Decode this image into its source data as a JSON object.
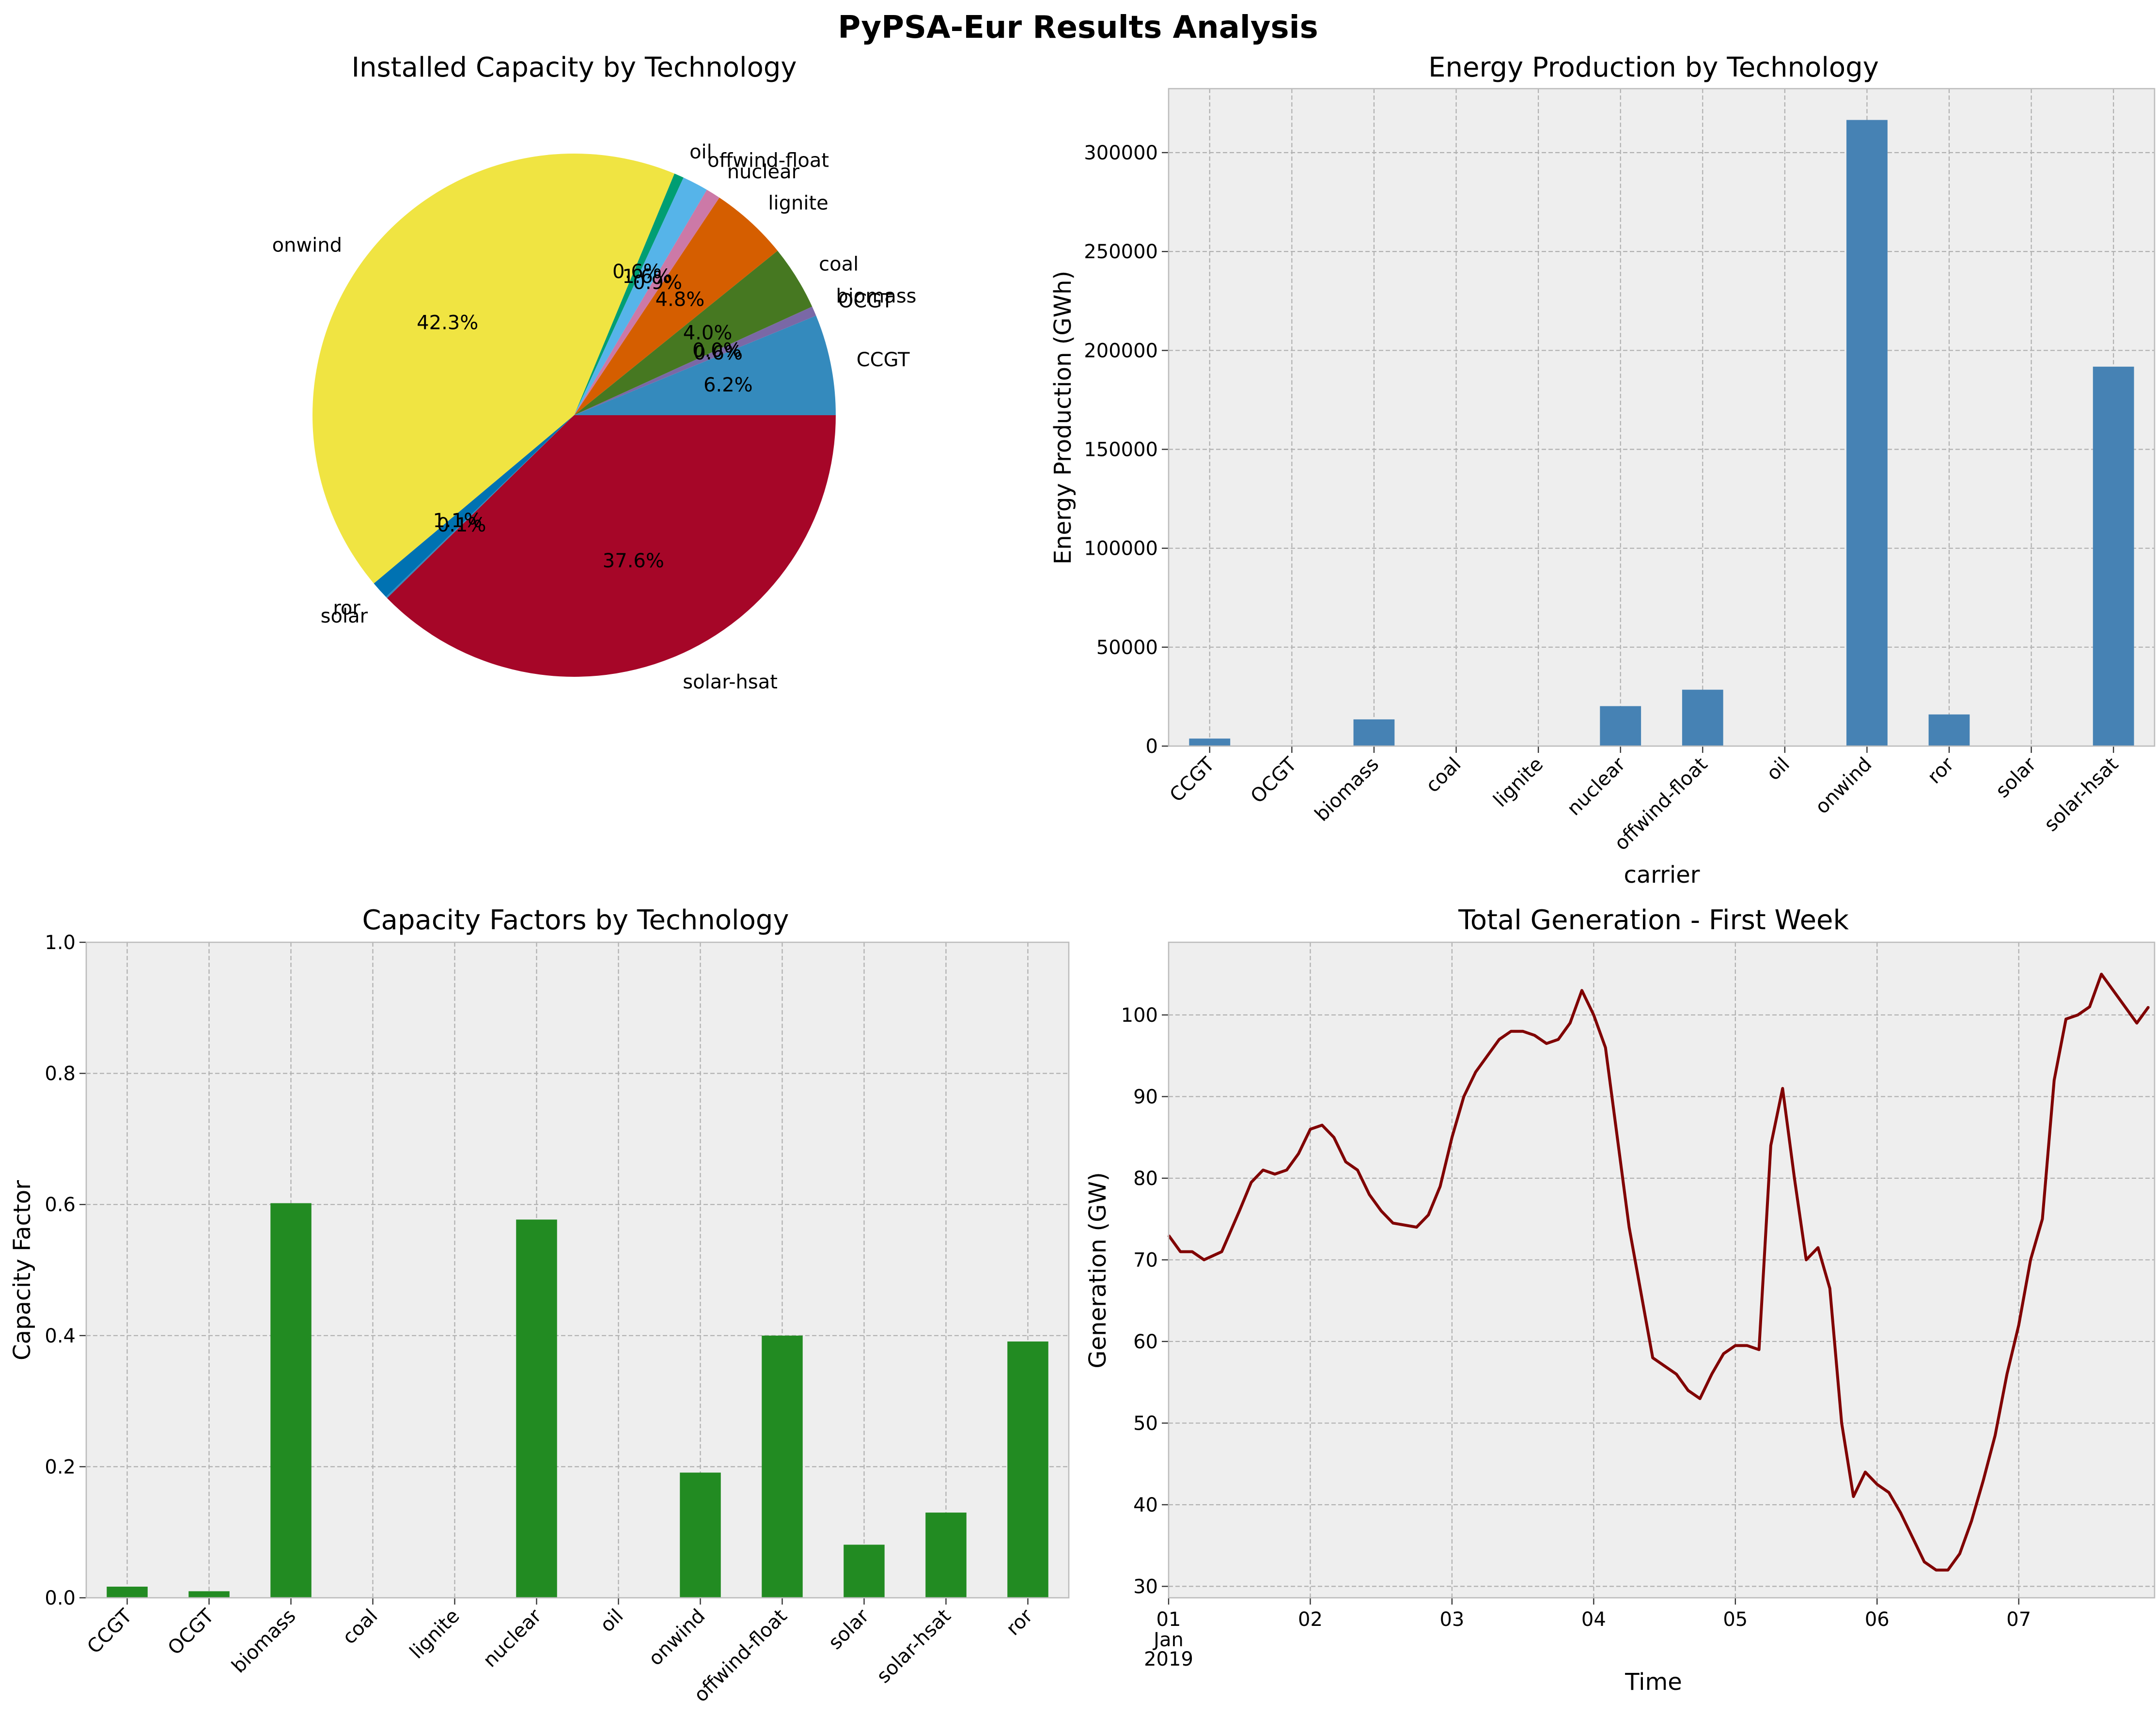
{
  "figure": {
    "title": "PyPSA-Eur Results Analysis",
    "background": "#ffffff",
    "axes_facecolor": "#eeeeee"
  },
  "chart_data": [
    {
      "type": "pie",
      "title": "Installed Capacity by Technology",
      "start_angle_deg": 0,
      "direction": "counterclockwise",
      "slices": [
        {
          "label": "CCGT",
          "value": 6.2,
          "pct_label": "6.2%",
          "color": "#348abd"
        },
        {
          "label": "OCGT",
          "value": 0.6,
          "pct_label": "0.6%",
          "color": "#7a68a6"
        },
        {
          "label": "biomass",
          "value": 0.0,
          "pct_label": "0.0%",
          "color": "#a60628"
        },
        {
          "label": "coal",
          "value": 4.0,
          "pct_label": "4.0%",
          "color": "#467821"
        },
        {
          "label": "lignite",
          "value": 4.8,
          "pct_label": "4.8%",
          "color": "#d55e00"
        },
        {
          "label": "nuclear",
          "value": 0.9,
          "pct_label": "0.9%",
          "color": "#cc79a7"
        },
        {
          "label": "offwind-float",
          "value": 1.6,
          "pct_label": "1.6%",
          "color": "#56b4e9"
        },
        {
          "label": "oil",
          "value": 0.6,
          "pct_label": "0.6%",
          "color": "#009e73"
        },
        {
          "label": "onwind",
          "value": 42.3,
          "pct_label": "42.3%",
          "color": "#f0e442"
        },
        {
          "label": "ror",
          "value": 1.1,
          "pct_label": "1.1%",
          "color": "#0072b2"
        },
        {
          "label": "solar",
          "value": 0.1,
          "pct_label": "0.1%",
          "color": "#348abd"
        },
        {
          "label": "solar-hsat",
          "value": 37.6,
          "pct_label": "37.6%",
          "color": "#a60628"
        }
      ]
    },
    {
      "type": "bar",
      "title": "Energy Production by Technology",
      "xlabel": "carrier",
      "ylabel": "Energy Production (GWh)",
      "categories": [
        "CCGT",
        "OCGT",
        "biomass",
        "coal",
        "lignite",
        "nuclear",
        "offwind-float",
        "oil",
        "onwind",
        "ror",
        "solar",
        "solar-hsat"
      ],
      "values": [
        3800,
        0,
        13500,
        0,
        0,
        20200,
        28500,
        0,
        316500,
        16000,
        0,
        191800
      ],
      "ylim": [
        0,
        332325
      ],
      "yticks": [
        0,
        50000,
        100000,
        150000,
        200000,
        250000,
        300000
      ],
      "grid": true,
      "color": "#4682b4"
    },
    {
      "type": "bar",
      "title": "Capacity Factors by Technology",
      "xlabel": "",
      "ylabel": "Capacity Factor",
      "categories": [
        "CCGT",
        "OCGT",
        "biomass",
        "coal",
        "lignite",
        "nuclear",
        "oil",
        "onwind",
        "offwind-float",
        "solar",
        "solar-hsat",
        "ror"
      ],
      "values": [
        0.017,
        0.01,
        0.602,
        0.0,
        0.0,
        0.577,
        0.0,
        0.191,
        0.4,
        0.081,
        0.13,
        0.391
      ],
      "ylim": [
        0,
        1.0
      ],
      "yticks": [
        0.0,
        0.2,
        0.4,
        0.6,
        0.8,
        1.0
      ],
      "ytick_labels": [
        "0.0",
        "0.2",
        "0.4",
        "0.6",
        "0.8",
        "1.0"
      ],
      "grid": true,
      "color": "#228b22"
    },
    {
      "type": "line",
      "title": "Total Generation - First Week",
      "xlabel": "Time",
      "ylabel": "Generation (GW)",
      "xlim": [
        "2019-01-01 00:00",
        "2019-01-07 23:00"
      ],
      "ylim": [
        28.6,
        108.9
      ],
      "yticks": [
        30,
        40,
        50,
        60,
        70,
        80,
        90,
        100
      ],
      "xtick_labels": [
        "01",
        "02",
        "03",
        "04",
        "05",
        "06",
        "07"
      ],
      "xtick_sublabel": [
        "Jan",
        "2019"
      ],
      "grid": true,
      "series": [
        {
          "color": "#800000",
          "points": [
            [
              "2019-01-01 00:00",
              73.0
            ],
            [
              "2019-01-01 02:00",
              71.0
            ],
            [
              "2019-01-01 04:00",
              71.0
            ],
            [
              "2019-01-01 06:00",
              70.0
            ],
            [
              "2019-01-01 09:00",
              71.0
            ],
            [
              "2019-01-01 12:00",
              76.0
            ],
            [
              "2019-01-01 14:00",
              79.5
            ],
            [
              "2019-01-01 16:00",
              81.0
            ],
            [
              "2019-01-01 18:00",
              80.5
            ],
            [
              "2019-01-01 20:00",
              81.0
            ],
            [
              "2019-01-01 22:00",
              83.0
            ],
            [
              "2019-01-02 00:00",
              86.0
            ],
            [
              "2019-01-02 02:00",
              86.5
            ],
            [
              "2019-01-02 04:00",
              85.0
            ],
            [
              "2019-01-02 06:00",
              82.0
            ],
            [
              "2019-01-02 08:00",
              81.0
            ],
            [
              "2019-01-02 10:00",
              78.0
            ],
            [
              "2019-01-02 12:00",
              76.0
            ],
            [
              "2019-01-02 14:00",
              74.5
            ],
            [
              "2019-01-02 18:00",
              74.0
            ],
            [
              "2019-01-02 20:00",
              75.5
            ],
            [
              "2019-01-02 22:00",
              79.0
            ],
            [
              "2019-01-03 00:00",
              85.0
            ],
            [
              "2019-01-03 02:00",
              90.0
            ],
            [
              "2019-01-03 04:00",
              93.0
            ],
            [
              "2019-01-03 06:00",
              95.0
            ],
            [
              "2019-01-03 08:00",
              97.0
            ],
            [
              "2019-01-03 10:00",
              98.0
            ],
            [
              "2019-01-03 12:00",
              98.0
            ],
            [
              "2019-01-03 14:00",
              97.5
            ],
            [
              "2019-01-03 16:00",
              96.5
            ],
            [
              "2019-01-03 18:00",
              97.0
            ],
            [
              "2019-01-03 20:00",
              99.0
            ],
            [
              "2019-01-03 22:00",
              103.0
            ],
            [
              "2019-01-04 00:00",
              100.0
            ],
            [
              "2019-01-04 02:00",
              96.0
            ],
            [
              "2019-01-04 04:00",
              85.0
            ],
            [
              "2019-01-04 06:00",
              74.0
            ],
            [
              "2019-01-04 08:00",
              66.0
            ],
            [
              "2019-01-04 10:00",
              58.0
            ],
            [
              "2019-01-04 12:00",
              57.0
            ],
            [
              "2019-01-04 14:00",
              56.0
            ],
            [
              "2019-01-04 16:00",
              54.0
            ],
            [
              "2019-01-04 18:00",
              53.0
            ],
            [
              "2019-01-04 20:00",
              56.0
            ],
            [
              "2019-01-04 22:00",
              58.5
            ],
            [
              "2019-01-05 00:00",
              59.5
            ],
            [
              "2019-01-05 02:00",
              59.5
            ],
            [
              "2019-01-05 04:00",
              59.0
            ],
            [
              "2019-01-05 06:00",
              84.0
            ],
            [
              "2019-01-05 08:00",
              91.0
            ],
            [
              "2019-01-05 10:00",
              80.0
            ],
            [
              "2019-01-05 12:00",
              70.0
            ],
            [
              "2019-01-05 14:00",
              71.5
            ],
            [
              "2019-01-05 16:00",
              66.5
            ],
            [
              "2019-01-05 18:00",
              50.0
            ],
            [
              "2019-01-05 20:00",
              41.0
            ],
            [
              "2019-01-05 22:00",
              44.0
            ],
            [
              "2019-01-06 00:00",
              42.5
            ],
            [
              "2019-01-06 02:00",
              41.5
            ],
            [
              "2019-01-06 04:00",
              39.0
            ],
            [
              "2019-01-06 06:00",
              36.0
            ],
            [
              "2019-01-06 08:00",
              33.0
            ],
            [
              "2019-01-06 10:00",
              32.0
            ],
            [
              "2019-01-06 12:00",
              32.0
            ],
            [
              "2019-01-06 14:00",
              34.0
            ],
            [
              "2019-01-06 16:00",
              38.0
            ],
            [
              "2019-01-06 18:00",
              43.0
            ],
            [
              "2019-01-06 20:00",
              48.5
            ],
            [
              "2019-01-06 22:00",
              56.0
            ],
            [
              "2019-01-07 00:00",
              62.0
            ],
            [
              "2019-01-07 02:00",
              70.0
            ],
            [
              "2019-01-07 04:00",
              75.0
            ],
            [
              "2019-01-07 06:00",
              92.0
            ],
            [
              "2019-01-07 08:00",
              99.5
            ],
            [
              "2019-01-07 10:00",
              100.0
            ],
            [
              "2019-01-07 12:00",
              101.0
            ],
            [
              "2019-01-07 14:00",
              105.0
            ],
            [
              "2019-01-07 16:00",
              103.0
            ],
            [
              "2019-01-07 18:00",
              101.0
            ],
            [
              "2019-01-07 20:00",
              99.0
            ],
            [
              "2019-01-07 22:00",
              101.0
            ]
          ]
        }
      ]
    }
  ]
}
